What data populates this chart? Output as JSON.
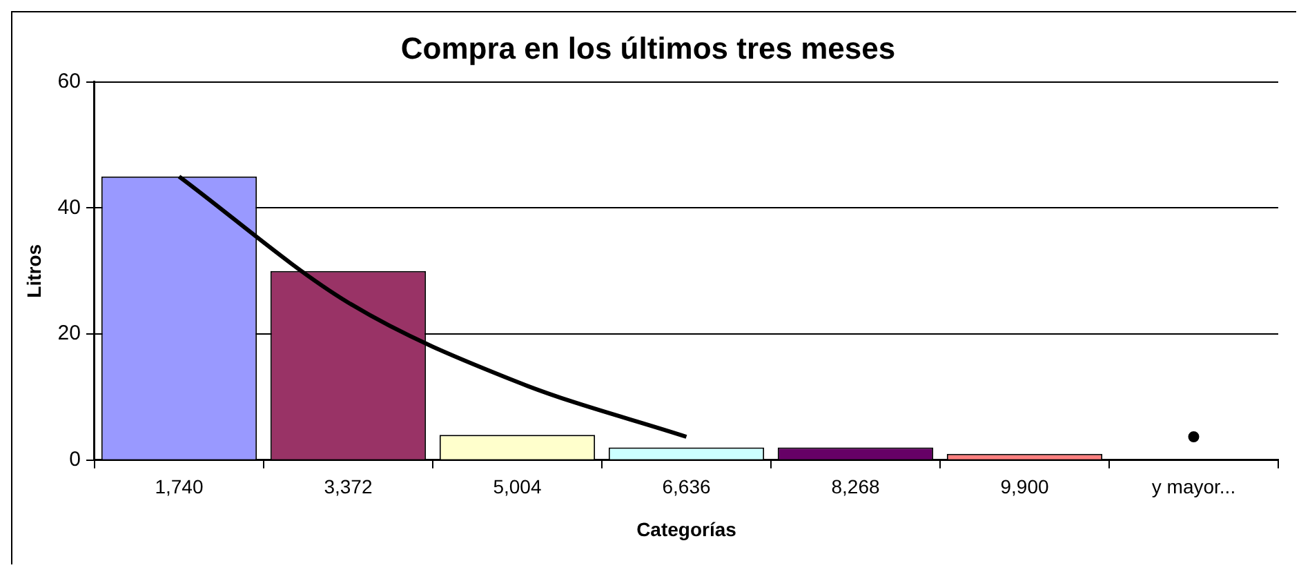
{
  "chart_data": {
    "type": "bar",
    "title": "Compra en los últimos tres meses",
    "xlabel": "Categorías",
    "ylabel": "Litros",
    "categories": [
      "1,740",
      "3,372",
      "5,004",
      "6,636",
      "8,268",
      "9,900",
      "y mayor..."
    ],
    "series": [
      {
        "colors": [
          "#9999ff",
          "#993366",
          "#ffffcc",
          "#ccffff",
          "#660066",
          "#ff8080",
          "#ffffff"
        ],
        "values": [
          45,
          30,
          4,
          2,
          2,
          1,
          0
        ]
      },
      {
        "type": "line",
        "color": "#000000",
        "values": [
          45,
          25,
          12.4,
          3.7,
          null,
          null,
          3.7
        ]
      }
    ],
    "ylim": [
      0,
      60
    ],
    "yticks": [
      0,
      20,
      40,
      60
    ],
    "grid": "y",
    "legend": false,
    "marker": "none",
    "line_style": "solid"
  }
}
